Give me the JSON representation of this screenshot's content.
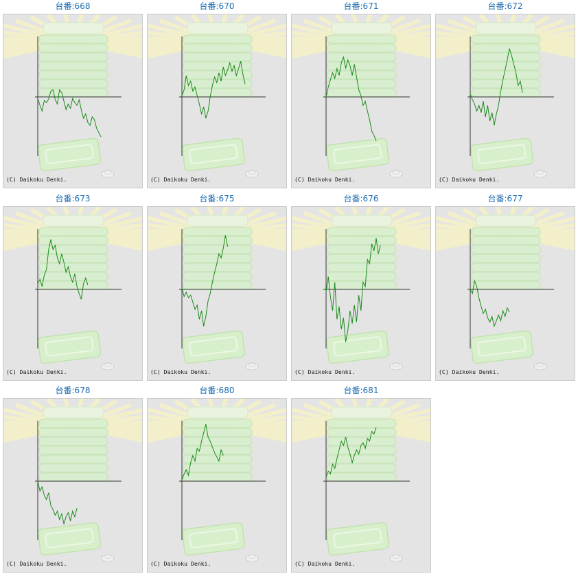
{
  "page": {
    "copyright": "(C) Daikoku Denki.",
    "line_color": "#1a8a1a",
    "title_color": "#1a6bb0"
  },
  "chart_data": [
    {
      "type": "line",
      "title": "台番:668",
      "x_range": [
        0,
        100
      ],
      "ylim": [
        -90,
        85
      ],
      "values": [
        -2,
        -12,
        -20,
        -5,
        -8,
        -3,
        8,
        10,
        -4,
        -10,
        10,
        6,
        -6,
        -18,
        -10,
        -16,
        -2,
        -8,
        -12,
        -4,
        -18,
        -30,
        -24,
        -36,
        -40,
        -28,
        -32,
        -44,
        -50,
        -56
      ]
    },
    {
      "type": "line",
      "title": "台番:670",
      "x_range": [
        0,
        100
      ],
      "ylim": [
        -90,
        85
      ],
      "values": [
        2,
        10,
        30,
        16,
        22,
        8,
        14,
        2,
        -10,
        -24,
        -14,
        -30,
        -20,
        0,
        16,
        28,
        20,
        34,
        22,
        42,
        30,
        38,
        48,
        36,
        44,
        30,
        40,
        50,
        32,
        18
      ]
    },
    {
      "type": "line",
      "title": "台番:671",
      "x_range": [
        0,
        100
      ],
      "ylim": [
        -90,
        85
      ],
      "values": [
        0,
        14,
        24,
        34,
        26,
        40,
        30,
        48,
        56,
        40,
        52,
        44,
        30,
        46,
        28,
        10,
        2,
        -12,
        -6,
        -20,
        -32,
        -48,
        -54,
        -62
      ]
    },
    {
      "type": "line",
      "title": "台番:672",
      "x_range": [
        0,
        100
      ],
      "ylim": [
        -90,
        85
      ],
      "values": [
        4,
        -4,
        -10,
        -20,
        -12,
        -22,
        -6,
        -28,
        -12,
        -34,
        -22,
        -40,
        -24,
        -12,
        8,
        24,
        38,
        52,
        68,
        58,
        46,
        34,
        16,
        22,
        6
      ]
    },
    {
      "type": "line",
      "title": "台番:673",
      "x_range": [
        0,
        100
      ],
      "ylim": [
        -90,
        85
      ],
      "values": [
        8,
        14,
        4,
        20,
        28,
        56,
        70,
        56,
        62,
        44,
        36,
        50,
        38,
        24,
        32,
        18,
        10,
        22,
        4,
        -6,
        -14,
        8,
        16,
        6
      ]
    },
    {
      "type": "line",
      "title": "台番:675",
      "x_range": [
        0,
        100
      ],
      "ylim": [
        -90,
        85
      ],
      "values": [
        2,
        -10,
        -4,
        -12,
        -8,
        -18,
        -28,
        -22,
        -42,
        -30,
        -52,
        -38,
        -16,
        -6,
        10,
        24,
        36,
        50,
        44,
        58,
        76,
        60
      ]
    },
    {
      "type": "line",
      "title": "台番:676",
      "x_range": [
        0,
        100
      ],
      "ylim": [
        -90,
        85
      ],
      "values": [
        -4,
        18,
        -10,
        -30,
        10,
        -42,
        -24,
        -56,
        -40,
        -74,
        -58,
        -30,
        -48,
        -22,
        -46,
        -8,
        -30,
        10,
        4,
        42,
        36,
        64,
        54,
        72,
        50,
        62
      ]
    },
    {
      "type": "line",
      "title": "台番:677",
      "x_range": [
        0,
        100
      ],
      "ylim": [
        -90,
        85
      ],
      "values": [
        0,
        -6,
        12,
        4,
        -12,
        -24,
        -34,
        -28,
        -40,
        -46,
        -38,
        -52,
        -44,
        -36,
        -44,
        -30,
        -38,
        -26,
        -32
      ]
    },
    {
      "type": "line",
      "title": "台番:678",
      "x_range": [
        0,
        100
      ],
      "ylim": [
        -90,
        85
      ],
      "values": [
        0,
        -14,
        -8,
        -20,
        -26,
        -16,
        -34,
        -40,
        -48,
        -42,
        -54,
        -46,
        -60,
        -50,
        -44,
        -56,
        -42,
        -50,
        -38
      ]
    },
    {
      "type": "line",
      "title": "台番:680",
      "x_range": [
        0,
        100
      ],
      "ylim": [
        -90,
        85
      ],
      "values": [
        2,
        10,
        16,
        8,
        26,
        36,
        28,
        46,
        42,
        56,
        68,
        80,
        62,
        56,
        48,
        40,
        34,
        28,
        44,
        36
      ]
    },
    {
      "type": "line",
      "title": "台番:681",
      "x_range": [
        0,
        100
      ],
      "ylim": [
        -90,
        85
      ],
      "values": [
        6,
        14,
        10,
        24,
        18,
        32,
        44,
        56,
        50,
        62,
        48,
        38,
        26,
        36,
        44,
        38,
        50,
        54,
        46,
        60,
        56,
        70,
        66,
        76
      ]
    }
  ]
}
